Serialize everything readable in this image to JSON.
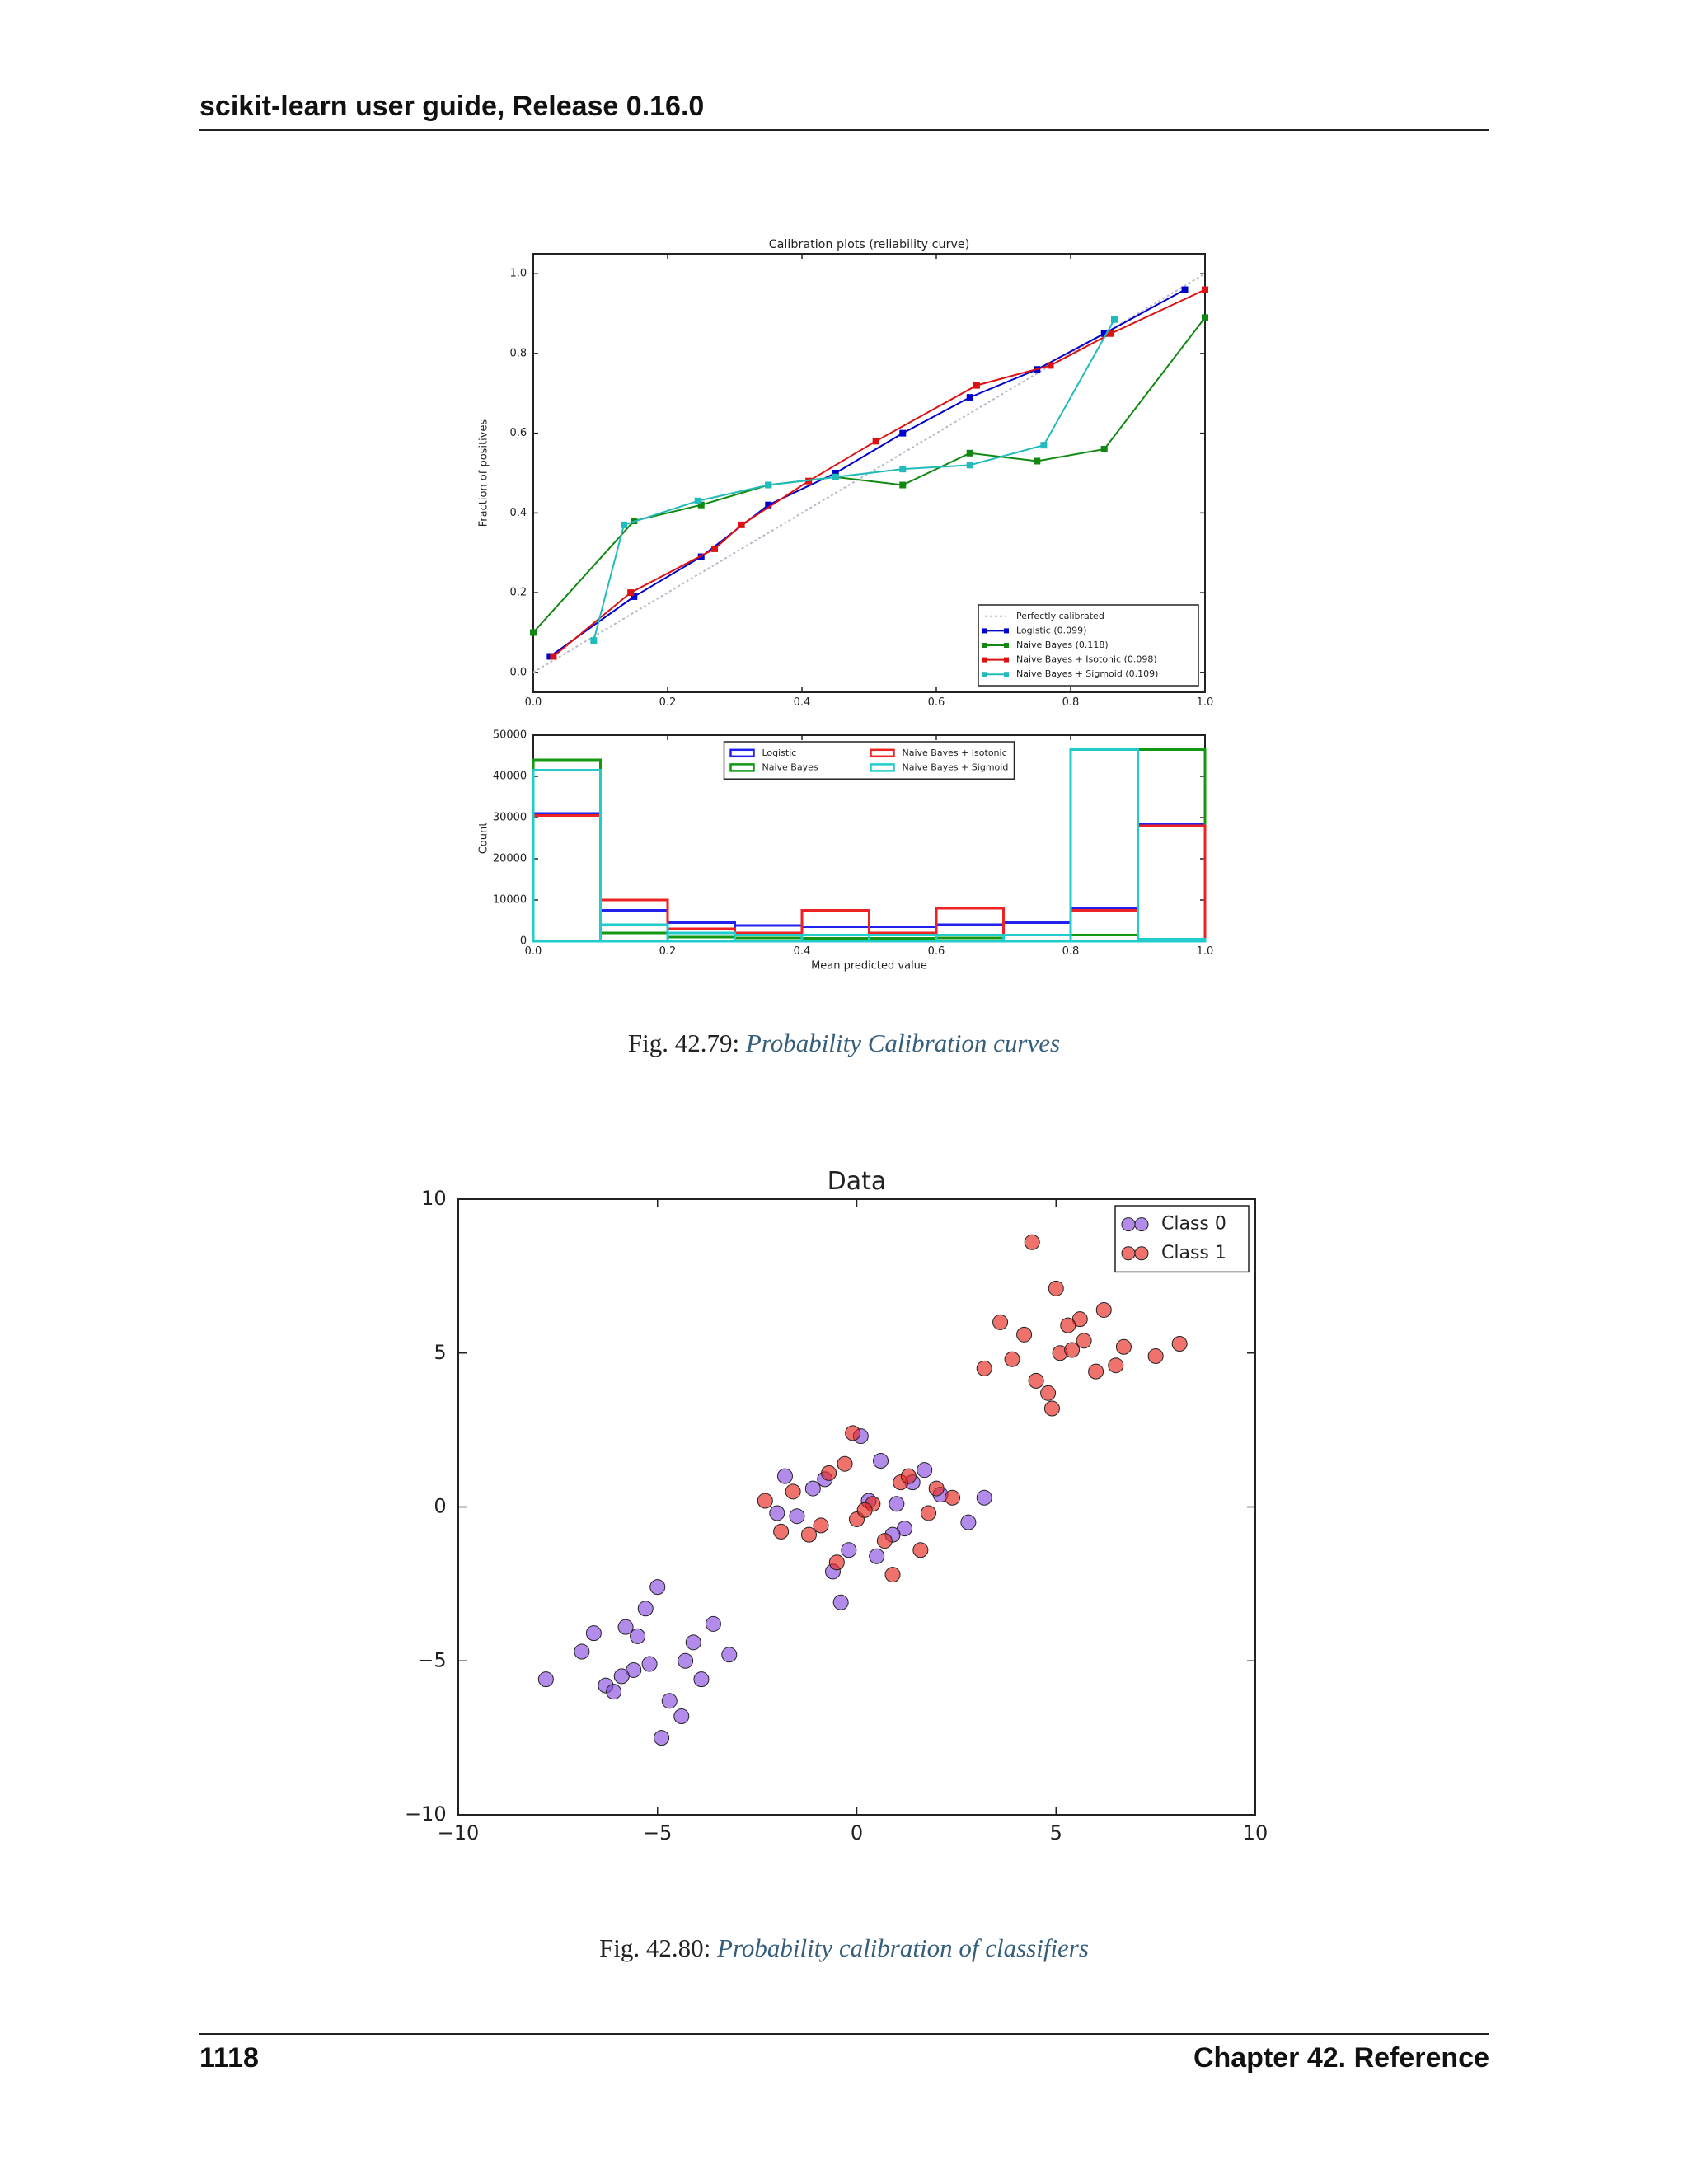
{
  "header": "scikit-learn user guide, Release 0.16.0",
  "chart_data": [
    {
      "type": "line",
      "title": "Calibration plots  (reliability curve)",
      "ylabel": "Fraction of positives",
      "xlim": [
        0,
        1
      ],
      "ylim": [
        -0.05,
        1.05
      ],
      "xticks": [
        {
          "value": 0,
          "label": "0.0"
        },
        {
          "value": 0.2,
          "label": "0.2"
        },
        {
          "value": 0.4,
          "label": "0.4"
        },
        {
          "value": 0.6,
          "label": "0.6"
        },
        {
          "value": 0.8,
          "label": "0.8"
        },
        {
          "value": 1,
          "label": "1.0"
        }
      ],
      "yticks": [
        {
          "value": 0,
          "label": "0.0"
        },
        {
          "value": 0.2,
          "label": "0.2"
        },
        {
          "value": 0.4,
          "label": "0.4"
        },
        {
          "value": 0.6,
          "label": "0.6"
        },
        {
          "value": 0.8,
          "label": "0.8"
        },
        {
          "value": 1,
          "label": "1.0"
        }
      ],
      "legend": "lower right",
      "series": [
        {
          "name": "Perfectly calibrated",
          "color": "#b8b8c8",
          "linestyle": "dotted",
          "marker": "none",
          "x": [
            0,
            1
          ],
          "values": [
            0,
            1
          ]
        },
        {
          "name": "Logistic (0.099)",
          "color": "#0000cc",
          "linestyle": "solid",
          "marker": "square",
          "x": [
            0.025,
            0.15,
            0.25,
            0.35,
            0.45,
            0.55,
            0.65,
            0.75,
            0.85,
            0.97
          ],
          "values": [
            0.04,
            0.19,
            0.29,
            0.42,
            0.5,
            0.6,
            0.69,
            0.76,
            0.85,
            0.96
          ]
        },
        {
          "name": "Naive Bayes (0.118)",
          "color": "#118811",
          "linestyle": "solid",
          "marker": "square",
          "x": [
            0.0,
            0.15,
            0.25,
            0.35,
            0.45,
            0.55,
            0.65,
            0.75,
            0.85,
            1.0
          ],
          "values": [
            0.1,
            0.38,
            0.42,
            0.47,
            0.49,
            0.47,
            0.55,
            0.53,
            0.56,
            0.89
          ]
        },
        {
          "name": "Naive Bayes + Isotonic (0.098)",
          "color": "#dd1111",
          "linestyle": "solid",
          "marker": "square",
          "x": [
            0.03,
            0.145,
            0.27,
            0.31,
            0.41,
            0.51,
            0.66,
            0.77,
            0.86,
            1.0
          ],
          "values": [
            0.04,
            0.2,
            0.31,
            0.37,
            0.48,
            0.58,
            0.72,
            0.77,
            0.85,
            0.96
          ]
        },
        {
          "name": "Naive Bayes + Sigmoid (0.109)",
          "color": "#22bbbb",
          "linestyle": "solid",
          "marker": "square",
          "x": [
            0.09,
            0.135,
            0.245,
            0.35,
            0.45,
            0.55,
            0.65,
            0.76,
            0.865
          ],
          "values": [
            0.08,
            0.37,
            0.43,
            0.47,
            0.49,
            0.51,
            0.52,
            0.57,
            0.885
          ]
        }
      ]
    },
    {
      "type": "histogram",
      "xlabel": "Mean predicted value",
      "ylabel": "Count",
      "bins": [
        0,
        0.1,
        0.2,
        0.3,
        0.4,
        0.5,
        0.6,
        0.7,
        0.8,
        0.9,
        1.0
      ],
      "xlim": [
        0,
        1
      ],
      "ylim": [
        0,
        50000
      ],
      "xticks": [
        {
          "value": 0,
          "label": "0.0"
        },
        {
          "value": 0.2,
          "label": "0.2"
        },
        {
          "value": 0.4,
          "label": "0.4"
        },
        {
          "value": 0.6,
          "label": "0.6"
        },
        {
          "value": 0.8,
          "label": "0.8"
        },
        {
          "value": 1,
          "label": "1.0"
        }
      ],
      "yticks": [
        0,
        10000,
        20000,
        30000,
        40000,
        50000
      ],
      "legend": "upper center",
      "legend_columns": 2,
      "series": [
        {
          "name": "Logistic",
          "color": "#2222ee",
          "values": [
            31000,
            7500,
            4500,
            3800,
            3500,
            3500,
            4000,
            4500,
            8000,
            28500
          ]
        },
        {
          "name": "Naive Bayes",
          "color": "#119911",
          "values": [
            44000,
            2000,
            1000,
            800,
            700,
            700,
            800,
            1500,
            1500,
            46500
          ]
        },
        {
          "name": "Naive Bayes + Isotonic",
          "color": "#ee2222",
          "values": [
            30500,
            10000,
            3000,
            2000,
            7500,
            2000,
            8000,
            1500,
            7500,
            28000
          ]
        },
        {
          "name": "Naive Bayes + Sigmoid",
          "color": "#22cccc",
          "values": [
            41500,
            4000,
            2000,
            1500,
            1500,
            1500,
            1500,
            1500,
            46500,
            500
          ]
        }
      ]
    },
    {
      "type": "scatter",
      "title": "Data",
      "xlim": [
        -10,
        10
      ],
      "ylim": [
        -10,
        10
      ],
      "xticks": [
        {
          "value": -10,
          "label": "−10"
        },
        {
          "value": -5,
          "label": "−5"
        },
        0,
        5,
        10
      ],
      "yticks": [
        {
          "value": -10,
          "label": "−10"
        },
        {
          "value": -5,
          "label": "−5"
        },
        0,
        5,
        10
      ],
      "legend": "upper right",
      "series": [
        {
          "name": "Class 0",
          "color": "#8a4fe0",
          "x": [
            -5.2,
            -4.1,
            -6.3,
            -5.8,
            -3.9,
            -4.7,
            -6.9,
            -5.5,
            -4.3,
            -3.2,
            -6.1,
            -5.0,
            -7.8,
            -4.9,
            -5.6,
            -3.6,
            -6.6,
            -4.4,
            -5.3,
            -5.9,
            0.3,
            -0.8,
            1.2,
            -1.5,
            0.6,
            2.1,
            -0.2,
            0.9,
            -1.1,
            1.7,
            -2.0,
            0.1,
            2.8,
            -0.6,
            1.4,
            0.5,
            -1.8,
            3.2,
            -0.4,
            1.0
          ],
          "values": [
            -5.1,
            -4.4,
            -5.8,
            -3.9,
            -5.6,
            -6.3,
            -4.7,
            -4.2,
            -5.0,
            -4.8,
            -6.0,
            -2.6,
            -5.6,
            -7.5,
            -5.3,
            -3.8,
            -4.1,
            -6.8,
            -3.3,
            -5.5,
            0.2,
            0.9,
            -0.7,
            -0.3,
            1.5,
            0.4,
            -1.4,
            -0.9,
            0.6,
            1.2,
            -0.2,
            2.3,
            -0.5,
            -2.1,
            0.8,
            -1.6,
            1.0,
            0.3,
            -3.1,
            0.1
          ]
        },
        {
          "name": "Class 1",
          "color": "#e8261e",
          "x": [
            0.4,
            -0.9,
            1.1,
            -0.3,
            1.8,
            -1.6,
            0.7,
            -0.5,
            2.4,
            0.0,
            -2.3,
            1.3,
            -1.2,
            0.9,
            -0.1,
            2.0,
            -0.7,
            1.6,
            0.2,
            -1.9,
            5.1,
            4.2,
            6.0,
            5.6,
            3.9,
            4.8,
            6.7,
            5.3,
            4.5,
            3.2,
            6.2,
            5.0,
            7.5,
            4.9,
            5.7,
            3.6,
            6.5,
            4.4,
            5.4,
            8.1
          ],
          "values": [
            0.1,
            -0.6,
            0.8,
            1.4,
            -0.2,
            0.5,
            -1.1,
            -1.8,
            0.3,
            -0.4,
            0.2,
            1.0,
            -0.9,
            -2.2,
            2.4,
            0.6,
            1.1,
            -1.4,
            -0.1,
            -0.8,
            5.0,
            5.6,
            4.4,
            6.1,
            4.8,
            3.7,
            5.2,
            5.9,
            4.1,
            4.5,
            6.4,
            7.1,
            4.9,
            3.2,
            5.4,
            6.0,
            4.6,
            8.6,
            5.1,
            5.3
          ]
        }
      ]
    }
  ],
  "captions": [
    {
      "number": "Fig.  42.79:",
      "text": "Probability Calibration curves"
    },
    {
      "number": "Fig.  42.80:",
      "text": "Probability calibration of classifiers"
    }
  ],
  "footer": {
    "page": "1118",
    "chapter": "Chapter 42.  Reference"
  }
}
